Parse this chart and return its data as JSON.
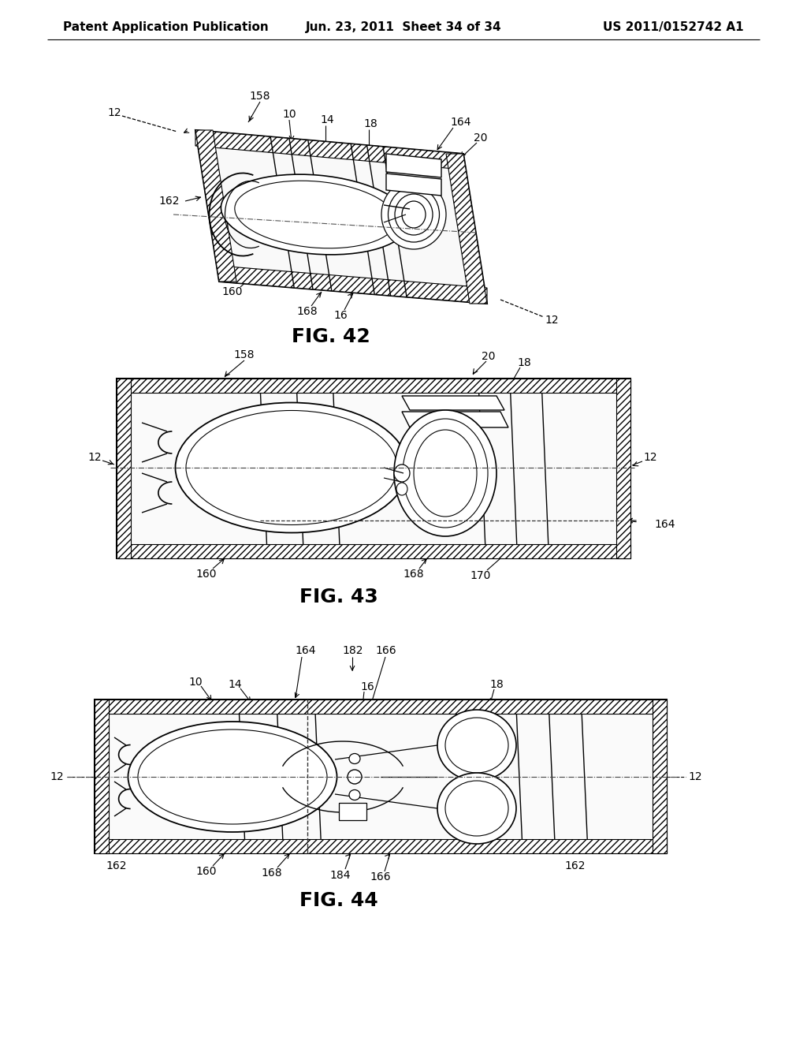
{
  "background_color": "#ffffff",
  "header_left": "Patent Application Publication",
  "header_center": "Jun. 23, 2011  Sheet 34 of 34",
  "header_right": "US 2011/0152742 A1",
  "fig42_caption": "FIG. 42",
  "fig43_caption": "FIG. 43",
  "fig44_caption": "FIG. 44",
  "caption_fontsize": 18,
  "label_fontsize": 10,
  "header_fontsize": 11
}
